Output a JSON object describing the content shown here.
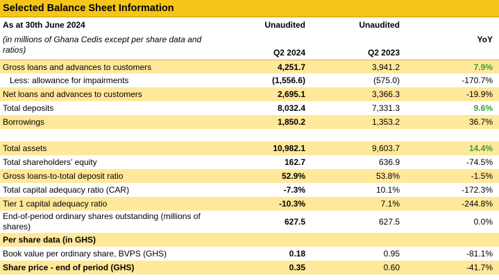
{
  "title": "Selected Balance Sheet Information",
  "header": {
    "as_at": "As at 30th June 2024",
    "note": "(in millions of Ghana Cedis except per share data and ratios)",
    "col1_top": "Unaudited",
    "col2_top": "Unaudited",
    "col1": "Q2 2024",
    "col2": "Q2 2023",
    "col3": "YoY"
  },
  "rows": [
    {
      "label": "Gross loans and advances to customers",
      "q2_2024": "4,251.7",
      "q2_2023": "3,941.2",
      "yoy": "7.9%"
    },
    {
      "label": "Less: allowance for impairments",
      "q2_2024": "(1,556.6)",
      "q2_2023": "(575.0)",
      "yoy": "-170.7%"
    },
    {
      "label": "Net loans and advances to customers",
      "q2_2024": "2,695.1",
      "q2_2023": "3,366.3",
      "yoy": "-19.9%"
    },
    {
      "label": "Total deposits",
      "q2_2024": "8,032.4",
      "q2_2023": "7,331.3",
      "yoy": "9.6%"
    },
    {
      "label": "Borrowings",
      "q2_2024": "1,850.2",
      "q2_2023": "1,353.2",
      "yoy": "36.7%"
    },
    {
      "label": "Total assets",
      "q2_2024": "10,982.1",
      "q2_2023": "9,603.7",
      "yoy": "14.4%"
    },
    {
      "label": "Total shareholders’ equity",
      "q2_2024": "162.7",
      "q2_2023": "636.9",
      "yoy": "-74.5%"
    },
    {
      "label": "Gross loans-to-total deposit ratio",
      "q2_2024": "52.9%",
      "q2_2023": "53.8%",
      "yoy": "-1.5%"
    },
    {
      "label": "Total capital adequacy ratio (CAR)",
      "q2_2024": "-7.3%",
      "q2_2023": "10.1%",
      "yoy": "-172.3%"
    },
    {
      "label": "Tier 1 capital adequacy ratio",
      "q2_2024": "-10.3%",
      "q2_2023": "7.1%",
      "yoy": "-244.8%"
    },
    {
      "label": "End-of-period ordinary shares outstanding (millions of shares)",
      "q2_2024": "627.5",
      "q2_2023": "627.5",
      "yoy": "0.0%"
    },
    {
      "label": "Per share data (in GHS)"
    },
    {
      "label": "Book value per ordinary share, BVPS (GHS)",
      "q2_2024": "0.18",
      "q2_2023": "0.95",
      "yoy": "-81.1%"
    },
    {
      "label": "Share price - end of period (GHS)",
      "q2_2024": "0.35",
      "q2_2023": "0.60",
      "yoy": "-41.7%"
    }
  ],
  "colors": {
    "header_yellow": "#f5c518",
    "band_yellow": "#ffe89a",
    "positive_green": "#3aa03a"
  }
}
